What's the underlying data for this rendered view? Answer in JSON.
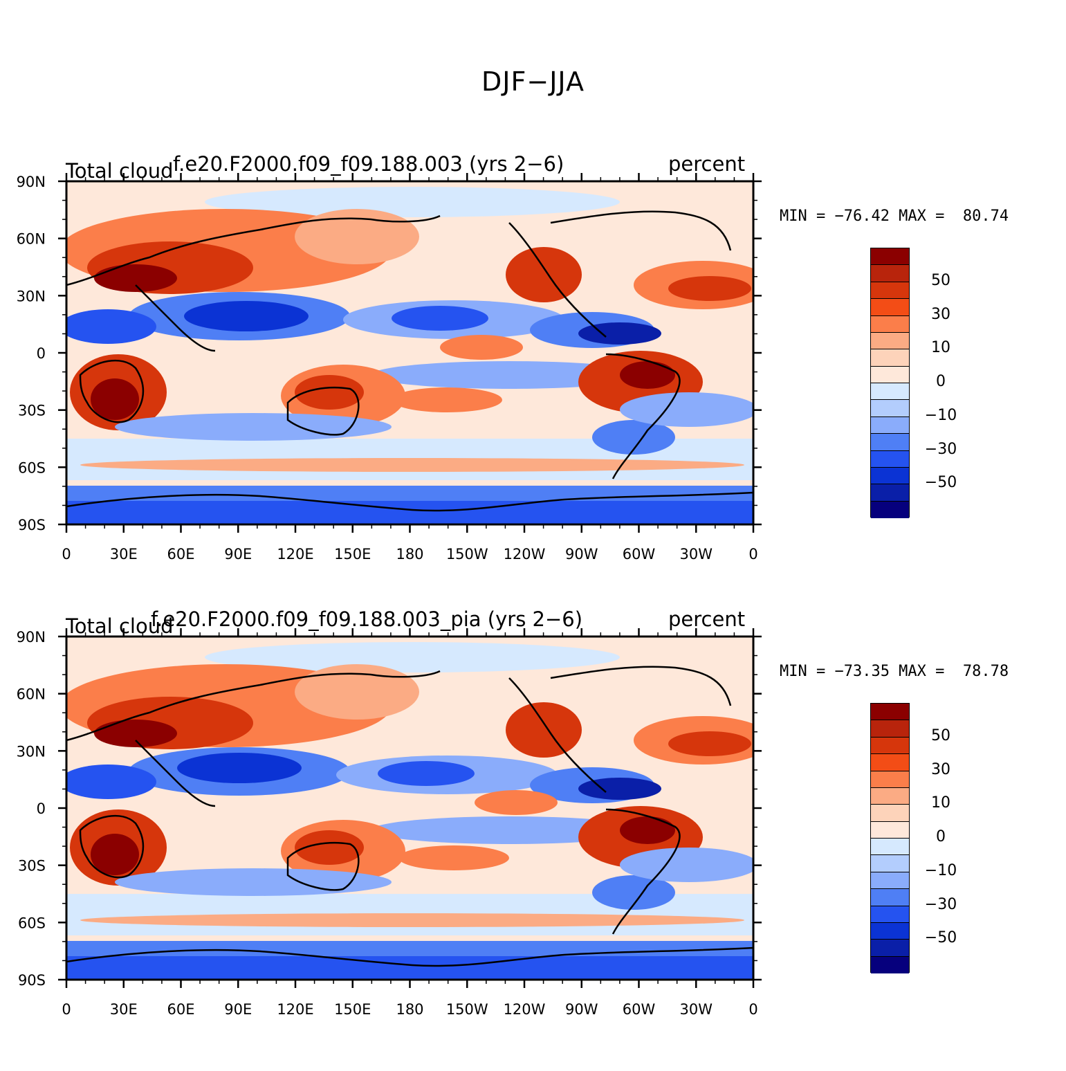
{
  "figure": {
    "title": "DJF−JJA"
  },
  "panels": [
    {
      "left_title": "Total cloud",
      "center_title": "f.e20.F2000.f09_f09.188.003 (yrs 2−6)",
      "right_title": "percent",
      "min_max": "MIN = −76.42 MAX =  80.74"
    },
    {
      "left_title": "Total cloud",
      "center_title": "f.e20.F2000.f09_f09.188.003_pia (yrs 2−6)",
      "right_title": "percent",
      "min_max": "MIN = −73.35 MAX =  78.78"
    }
  ],
  "axes": {
    "lat_labels": [
      "90N",
      "60N",
      "30N",
      "0",
      "30S",
      "60S",
      "90S"
    ],
    "lon_labels": [
      "0",
      "30E",
      "60E",
      "90E",
      "120E",
      "150E",
      "180",
      "150W",
      "120W",
      "90W",
      "60W",
      "30W",
      "0"
    ]
  },
  "colorbar": {
    "labels": [
      "50",
      "30",
      "10",
      "0",
      "−10",
      "−30",
      "−50"
    ],
    "colors": [
      "#8b0000",
      "#b8240c",
      "#d6360c",
      "#f34d16",
      "#fb7e4a",
      "#fbab84",
      "#fdd3ba",
      "#fee8da",
      "#d6e9fe",
      "#b3cdfd",
      "#8aacfb",
      "#4f7ff5",
      "#2553f0",
      "#0b33d4",
      "#0a1fa8",
      "#06007d"
    ]
  }
}
